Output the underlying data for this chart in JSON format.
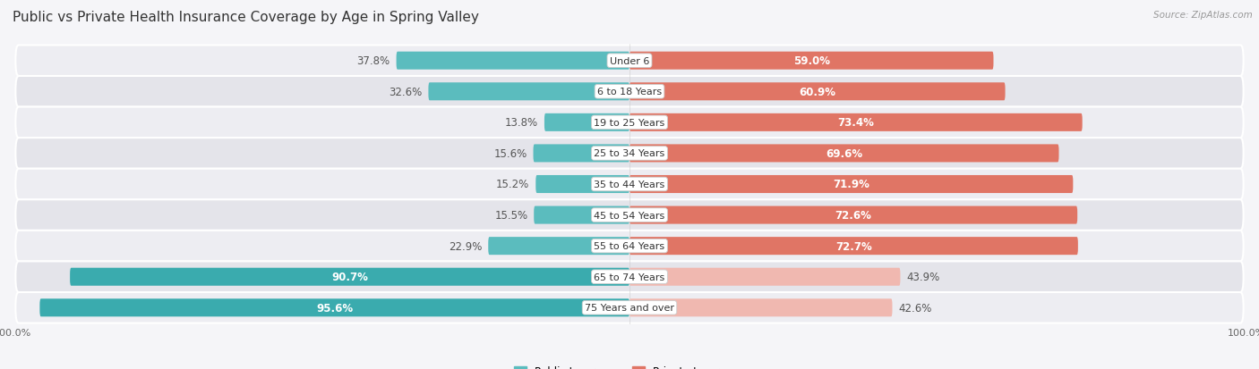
{
  "title": "Public vs Private Health Insurance Coverage by Age in Spring Valley",
  "source": "Source: ZipAtlas.com",
  "categories": [
    "Under 6",
    "6 to 18 Years",
    "19 to 25 Years",
    "25 to 34 Years",
    "35 to 44 Years",
    "45 to 54 Years",
    "55 to 64 Years",
    "65 to 74 Years",
    "75 Years and over"
  ],
  "public_values": [
    37.8,
    32.6,
    13.8,
    15.6,
    15.2,
    15.5,
    22.9,
    90.7,
    95.6
  ],
  "private_values": [
    59.0,
    60.9,
    73.4,
    69.6,
    71.9,
    72.6,
    72.7,
    43.9,
    42.6
  ],
  "public_color": "#5bbcbe",
  "private_color_high": "#e07565",
  "private_color_low": "#f0b8b0",
  "public_color_large": "#3aabae",
  "row_bg_odd": "#ededf2",
  "row_bg_even": "#e4e4ea",
  "axis_max": 100.0,
  "legend_public": "Public Insurance",
  "legend_private": "Private Insurance",
  "title_fontsize": 11,
  "value_fontsize": 8.5,
  "category_fontsize": 8.0,
  "axis_fontsize": 8.0,
  "source_fontsize": 7.5
}
